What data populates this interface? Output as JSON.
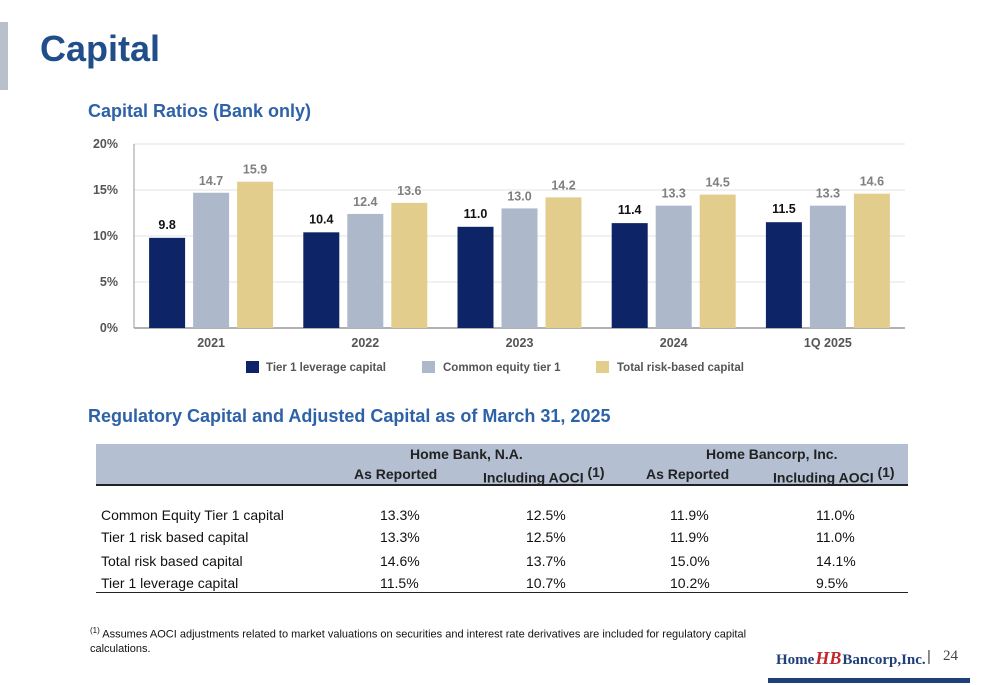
{
  "page": {
    "title": "Capital",
    "page_number": "24",
    "separator": "|"
  },
  "chart_data": {
    "type": "bar",
    "title": "Capital Ratios (Bank only)",
    "categories": [
      "2021",
      "2022",
      "2023",
      "2024",
      "1Q 2025"
    ],
    "series": [
      {
        "name": "Tier 1 leverage capital",
        "values": [
          9.8,
          10.4,
          11.0,
          11.4,
          11.5
        ],
        "color": "#0d2466",
        "label_color": "#111111"
      },
      {
        "name": "Common equity tier 1",
        "values": [
          14.7,
          12.4,
          13.0,
          13.3,
          13.3
        ],
        "color": "#aeb8cb",
        "label_color": "#7f7f7f"
      },
      {
        "name": "Total risk-based capital",
        "values": [
          15.9,
          13.6,
          14.2,
          14.5,
          14.6
        ],
        "color": "#e3cd8d",
        "label_color": "#7f7f7f"
      }
    ],
    "ylim": [
      0,
      20
    ],
    "yticks": [
      "0%",
      "5%",
      "10%",
      "15%",
      "20%"
    ],
    "ytick_values": [
      0,
      5,
      10,
      15,
      20
    ],
    "grid": true,
    "legend": "bottom"
  },
  "table": {
    "title": "Regulatory Capital and Adjusted Capital as of March 31, 2025",
    "groups": [
      "Home Bank, N.A.",
      "Home Bancorp, Inc."
    ],
    "columns": [
      "As Reported",
      "Including AOCI",
      "As Reported",
      "Including AOCI"
    ],
    "footnote_mark": "(1)",
    "rows": [
      {
        "label": "Common Equity Tier 1 capital",
        "values": [
          "13.3%",
          "12.5%",
          "11.9%",
          "11.0%"
        ]
      },
      {
        "label": "Tier 1 risk based capital",
        "values": [
          "13.3%",
          "12.5%",
          "11.9%",
          "11.0%"
        ]
      },
      {
        "label": "Total risk based capital",
        "values": [
          "14.6%",
          "13.7%",
          "15.0%",
          "14.1%"
        ]
      },
      {
        "label": "Tier 1 leverage capital",
        "values": [
          "11.5%",
          "10.7%",
          "10.2%",
          "9.5%"
        ]
      }
    ]
  },
  "footnote": {
    "mark": "(1)",
    "text": " Assumes AOCI adjustments related to market valuations on securities and interest rate derivatives are included for regulatory capital calculations."
  },
  "logo": {
    "left": "Home",
    "mark": "HB",
    "right": "Bancorp,Inc."
  }
}
